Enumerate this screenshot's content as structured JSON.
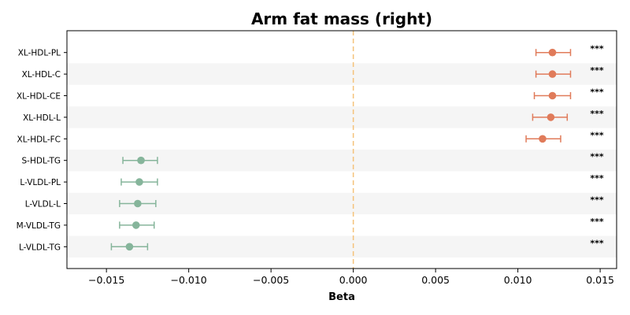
{
  "chart_data": {
    "type": "scatter",
    "title": "Arm fat mass (right)",
    "xlabel": "Beta",
    "ylabel": "",
    "xlim": [
      -0.0174,
      0.016
    ],
    "xticks": [
      -0.015,
      -0.01,
      -0.005,
      0.0,
      0.005,
      0.01,
      0.015
    ],
    "xtick_labels": [
      "−0.015",
      "−0.010",
      "−0.005",
      "0.000",
      "0.005",
      "0.010",
      "0.015"
    ],
    "reference_line": 0.0,
    "grid": false,
    "colors": {
      "positive": "#e07b5a",
      "negative": "#86b59b",
      "reference": "#f5c27a",
      "band": "#f5f5f5"
    },
    "points": [
      {
        "label": "XL-HDL-PL",
        "beta": 0.0121,
        "ci_low": 0.0111,
        "ci_high": 0.0132,
        "significance": "***"
      },
      {
        "label": "XL-HDL-C",
        "beta": 0.0121,
        "ci_low": 0.0111,
        "ci_high": 0.0132,
        "significance": "***"
      },
      {
        "label": "XL-HDL-CE",
        "beta": 0.0121,
        "ci_low": 0.011,
        "ci_high": 0.0132,
        "significance": "***"
      },
      {
        "label": "XL-HDL-L",
        "beta": 0.012,
        "ci_low": 0.0109,
        "ci_high": 0.013,
        "significance": "***"
      },
      {
        "label": "XL-HDL-FC",
        "beta": 0.0115,
        "ci_low": 0.0105,
        "ci_high": 0.0126,
        "significance": "***"
      },
      {
        "label": "S-HDL-TG",
        "beta": -0.0129,
        "ci_low": -0.014,
        "ci_high": -0.0119,
        "significance": "***"
      },
      {
        "label": "L-VLDL-PL",
        "beta": -0.013,
        "ci_low": -0.0141,
        "ci_high": -0.0119,
        "significance": "***"
      },
      {
        "label": "L-VLDL-L",
        "beta": -0.0131,
        "ci_low": -0.0142,
        "ci_high": -0.012,
        "significance": "***"
      },
      {
        "label": "M-VLDL-TG",
        "beta": -0.0132,
        "ci_low": -0.0142,
        "ci_high": -0.0121,
        "significance": "***"
      },
      {
        "label": "L-VLDL-TG",
        "beta": -0.0136,
        "ci_low": -0.0147,
        "ci_high": -0.0125,
        "significance": "***"
      }
    ]
  }
}
